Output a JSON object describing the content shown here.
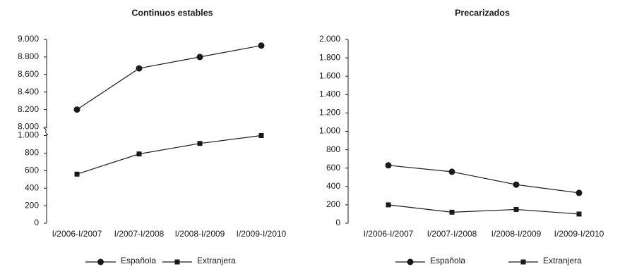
{
  "chart_data": [
    {
      "type": "line",
      "title": "Continuos estables",
      "categories": [
        "I/2006-I/2007",
        "I/2007-I/2008",
        "I/2008-I/2009",
        "I/2009-I/2010"
      ],
      "series": [
        {
          "name": "Española",
          "color": "#1a1a1a",
          "marker": "circle",
          "values": [
            8200,
            8670,
            8800,
            8930
          ]
        },
        {
          "name": "Extranjera",
          "color": "#1a1a1a",
          "marker": "square",
          "values": [
            560,
            790,
            910,
            1000
          ]
        }
      ],
      "ylim": [
        0,
        9000
      ],
      "axis_break": [
        1000,
        8000
      ],
      "yticks": [
        0,
        200,
        400,
        600,
        800,
        {
          "value": 1000,
          "label": "1.000"
        },
        {
          "value": 8000,
          "label": "8.000"
        },
        {
          "value": 8200,
          "label": "8.200"
        },
        {
          "value": 8400,
          "label": "8.400"
        },
        {
          "value": 8600,
          "label": "8.600"
        },
        {
          "value": 8800,
          "label": "8.800"
        },
        {
          "value": 9000,
          "label": "9.000"
        }
      ],
      "grid": false
    },
    {
      "type": "line",
      "title": "Precarizados",
      "categories": [
        "I/2006-I/2007",
        "I/2007-I/2008",
        "I/2008-I/2009",
        "I/2009-I/2010"
      ],
      "series": [
        {
          "name": "Española",
          "color": "#1a1a1a",
          "marker": "circle",
          "values": [
            630,
            560,
            420,
            330
          ]
        },
        {
          "name": "Extranjera",
          "color": "#1a1a1a",
          "marker": "square",
          "values": [
            200,
            120,
            150,
            100
          ]
        }
      ],
      "ylim": [
        0,
        2000
      ],
      "yticks": [
        0,
        200,
        400,
        600,
        800,
        {
          "value": 1000,
          "label": "1.000"
        },
        {
          "value": 1200,
          "label": "1.200"
        },
        {
          "value": 1400,
          "label": "1.400"
        },
        {
          "value": 1600,
          "label": "1.600"
        },
        {
          "value": 1800,
          "label": "1.800"
        },
        {
          "value": 2000,
          "label": "2.000"
        }
      ],
      "grid": false
    }
  ]
}
